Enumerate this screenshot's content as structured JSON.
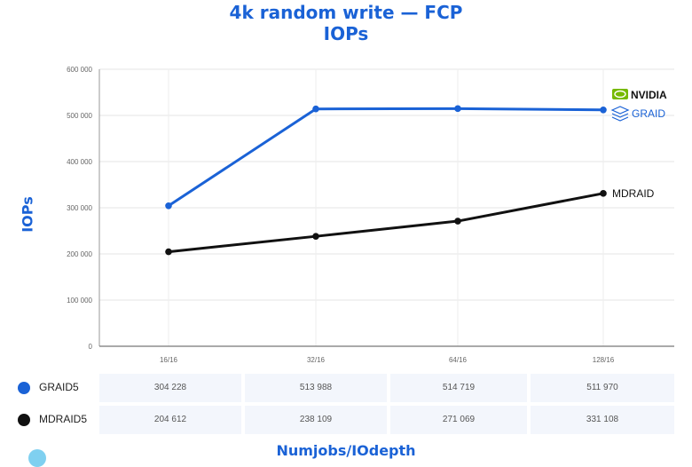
{
  "title_line1": "4k random write — FCP",
  "title_line2": "IOPs",
  "legend_logos": {
    "nvidia": "NVIDIA",
    "graid": "GRAID"
  },
  "table": {
    "rows": [
      {
        "name": "GRAID5",
        "color": "#1a62d6",
        "cells": [
          "304 228",
          "513 988",
          "514 719",
          "511 970"
        ]
      },
      {
        "name": "MDRAID5",
        "color": "#111111",
        "cells": [
          "204 612",
          "238 109",
          "271 069",
          "331 108"
        ]
      }
    ]
  },
  "chart_data": {
    "type": "line",
    "title": "4k random write — FCP IOPs",
    "xlabel": "Numjobs/IOdepth",
    "ylabel": "IOPs",
    "categories": [
      "16/16",
      "32/16",
      "64/16",
      "128/16"
    ],
    "ylim": [
      0,
      600000
    ],
    "yticks": [
      0,
      100000,
      200000,
      300000,
      400000,
      500000,
      600000
    ],
    "ytick_labels": [
      "0",
      "100 000",
      "200 000",
      "300 000",
      "400 000",
      "500 000",
      "600 000"
    ],
    "grid": true,
    "series": [
      {
        "name": "GRAID5",
        "color": "#1a62d6",
        "values": [
          304228,
          513988,
          514719,
          511970
        ]
      },
      {
        "name": "MDRAID5",
        "color": "#111111",
        "values": [
          204612,
          238109,
          271069,
          331108
        ]
      }
    ],
    "annotations": [
      {
        "text": "MDRAID",
        "series": "MDRAID5"
      }
    ]
  }
}
